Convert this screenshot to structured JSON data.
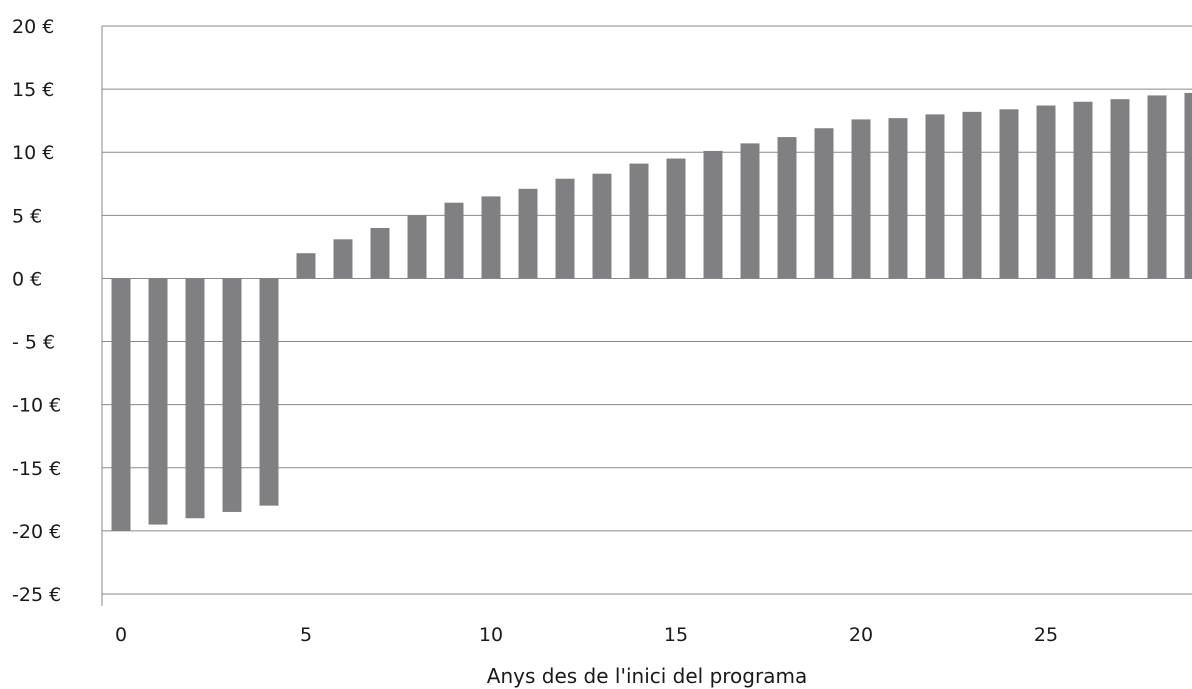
{
  "chart_data": {
    "type": "bar",
    "title": "",
    "xlabel": "Anys des de l'inici del programa",
    "ylabel": "",
    "x": [
      0,
      1,
      2,
      3,
      4,
      5,
      6,
      7,
      8,
      9,
      10,
      11,
      12,
      13,
      14,
      15,
      16,
      17,
      18,
      19,
      20,
      21,
      22,
      23,
      24,
      25,
      26,
      27,
      28,
      29
    ],
    "values": [
      -20,
      -19.5,
      -19,
      -18.5,
      -18,
      2,
      3.1,
      4,
      5,
      6,
      6.5,
      7.1,
      7.9,
      8.3,
      9.1,
      9.5,
      10.1,
      10.7,
      11.2,
      11.9,
      12.6,
      12.7,
      13,
      13.2,
      13.4,
      13.7,
      14,
      14.2,
      14.5,
      14.7
    ],
    "ylim": [
      -25,
      20
    ],
    "y_ticks": [
      20,
      15,
      10,
      5,
      0,
      -5,
      -10,
      -15,
      -20,
      -25
    ],
    "y_tick_labels": [
      "20 €",
      "15 €",
      "10 €",
      "5 €",
      "0 €",
      "- 5 €",
      "-10 €",
      "-15 €",
      "-20 €",
      "-25 €"
    ],
    "x_ticks": [
      0,
      5,
      10,
      15,
      20,
      25
    ],
    "x_tick_labels": [
      "0",
      "5",
      "10",
      "15",
      "20",
      "25"
    ],
    "grid": true,
    "bar_color": "#808083",
    "grid_color": "#8a8a8a"
  }
}
